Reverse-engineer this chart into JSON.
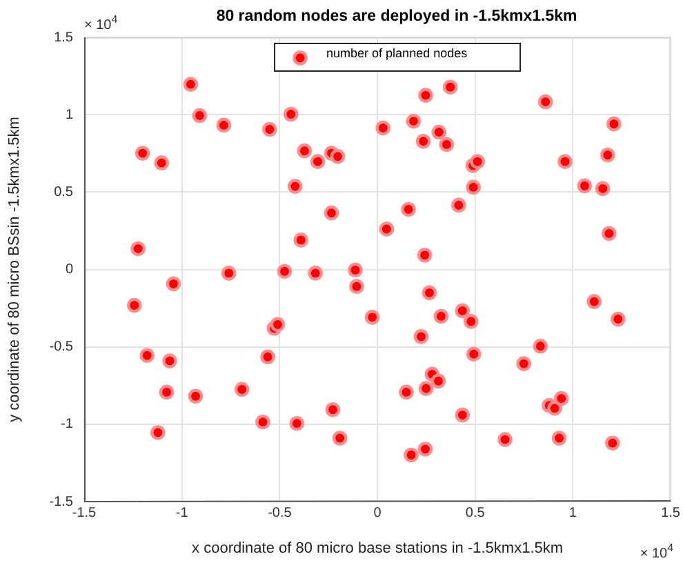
{
  "chart_data": {
    "type": "scatter",
    "title": "80 random nodes are deployed in -1.5kmx1.5km",
    "xlabel": "x coordinate of 80 micro base stations in -1.5kmx1.5km",
    "ylabel": "y coordinate of 80 micro BSsin -1.5kmx1.5km",
    "annotations": [
      "× 10$^{4}$",
      "× 10$^{4}$"
    ],
    "xlim": [
      -1.5,
      1.5
    ],
    "ylim": [
      -1.5,
      1.5
    ],
    "xticks": [
      -1.5,
      -1,
      -0.5,
      0,
      0.5,
      1,
      1.5
    ],
    "yticks": [
      -1.5,
      -1,
      -0.5,
      0,
      0.5,
      1,
      1.5
    ],
    "grid": true,
    "legend": "top",
    "marker": "circle",
    "series": [
      {
        "name": "number of planned nodes",
        "color": "#ff0000",
        "x": [
          -0.955,
          -0.909,
          -0.786,
          -0.551,
          -0.442,
          -1.201,
          -1.104,
          -0.373,
          -0.305,
          -0.235,
          -0.203,
          -0.421,
          -0.235,
          -0.391,
          -1.224,
          -0.76,
          -0.475,
          -0.317,
          -0.113,
          -0.106,
          -1.043,
          -1.243,
          -0.528,
          -0.51,
          -1.178,
          -1.062,
          -0.561,
          -1.078,
          -0.93,
          -0.693,
          -1.123,
          -0.586,
          -0.412,
          -0.228,
          -0.192,
          -0.026,
          0.373,
          0.247,
          0.86,
          0.029,
          0.185,
          0.315,
          0.235,
          0.354,
          1.21,
          1.178,
          0.489,
          0.512,
          0.96,
          0.491,
          1.06,
          1.153,
          0.159,
          0.416,
          0.047,
          1.185,
          0.242,
          0.266,
          1.109,
          0.435,
          0.326,
          0.479,
          1.231,
          0.224,
          0.834,
          0.493,
          0.749,
          0.28,
          0.312,
          0.148,
          0.249,
          0.879,
          0.907,
          0.941,
          0.435,
          0.653,
          0.93,
          1.203,
          0.173,
          0.245
        ],
        "values": [
          1.196,
          0.994,
          0.932,
          0.905,
          1.003,
          0.751,
          0.688,
          0.766,
          0.697,
          0.751,
          0.73,
          0.537,
          0.365,
          0.19,
          0.134,
          -0.024,
          -0.012,
          -0.024,
          -0.004,
          -0.11,
          -0.093,
          -0.232,
          -0.38,
          -0.356,
          -0.556,
          -0.591,
          -0.565,
          -0.793,
          -0.819,
          -0.775,
          -1.054,
          -0.986,
          -0.995,
          -0.906,
          -1.09,
          -0.309,
          1.178,
          1.125,
          1.083,
          0.914,
          0.958,
          0.887,
          0.828,
          0.807,
          0.94,
          0.739,
          0.671,
          0.697,
          0.697,
          0.531,
          0.54,
          0.522,
          0.388,
          0.415,
          0.261,
          0.232,
          0.092,
          -0.151,
          -0.208,
          -0.267,
          -0.303,
          -0.336,
          -0.321,
          -0.434,
          -0.496,
          -0.547,
          -0.609,
          -0.677,
          -0.721,
          -0.793,
          -0.769,
          -0.879,
          -0.897,
          -0.834,
          -0.941,
          -1.099,
          -1.09,
          -1.122,
          -1.199,
          -1.161
        ]
      }
    ]
  }
}
